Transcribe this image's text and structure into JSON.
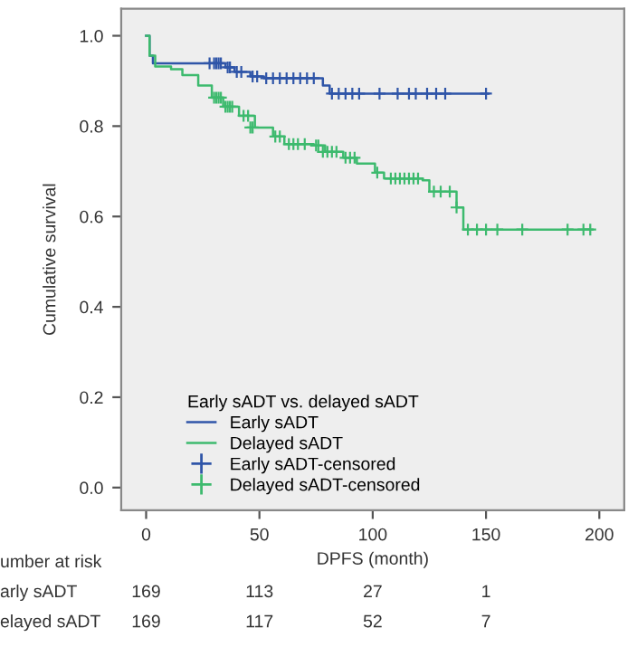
{
  "chart_data": {
    "type": "step",
    "xlabel": "DPFS (month)",
    "ylabel": "Cumulative survival",
    "legend_title": "Early sADT vs. delayed sADT",
    "xlim": [
      -11,
      211
    ],
    "ylim": [
      -0.05,
      1.06
    ],
    "xticks": [
      0,
      50,
      100,
      150,
      200
    ],
    "yticks": [
      {
        "value": 0,
        "label": "0.0"
      },
      0.2,
      0.4,
      0.6,
      0.8,
      {
        "value": 1,
        "label": "1.0"
      }
    ],
    "grid": false,
    "legend": "bottom left",
    "series": [
      {
        "name": "Early sADT",
        "color": "#2f55a8",
        "x": [
          0,
          1.5,
          3,
          35,
          39,
          46,
          52,
          78,
          81,
          151
        ],
        "values": [
          1.0,
          0.956,
          0.939,
          0.93,
          0.92,
          0.91,
          0.906,
          0.89,
          0.872,
          0.872
        ]
      },
      {
        "name": "Delayed sADT",
        "color": "#3dba6e",
        "x": [
          0,
          1.5,
          4,
          11,
          16,
          23,
          29,
          34,
          41,
          48,
          56,
          61,
          74,
          79,
          87,
          93,
          101,
          105,
          122,
          125,
          135,
          137,
          140,
          197
        ],
        "values": [
          1.0,
          0.956,
          0.932,
          0.926,
          0.913,
          0.89,
          0.863,
          0.843,
          0.823,
          0.797,
          0.777,
          0.76,
          0.757,
          0.743,
          0.73,
          0.717,
          0.697,
          0.684,
          0.68,
          0.655,
          0.655,
          0.62,
          0.571,
          0.571
        ]
      },
      {
        "name": "Early sADT-censored",
        "type": "scatter",
        "marker": "cross",
        "color": "#2f55a8",
        "x": [
          28,
          30,
          31,
          32,
          33,
          36,
          37,
          40,
          42,
          47,
          49,
          53,
          56,
          59,
          62,
          65,
          68,
          71,
          74,
          82,
          85,
          88,
          91,
          94,
          103,
          111,
          116,
          119,
          124,
          128,
          132,
          150
        ],
        "values": [
          0.939,
          0.939,
          0.939,
          0.939,
          0.939,
          0.93,
          0.93,
          0.92,
          0.92,
          0.91,
          0.91,
          0.906,
          0.906,
          0.906,
          0.906,
          0.906,
          0.906,
          0.906,
          0.906,
          0.872,
          0.872,
          0.872,
          0.872,
          0.872,
          0.872,
          0.872,
          0.872,
          0.872,
          0.872,
          0.872,
          0.872,
          0.872
        ]
      },
      {
        "name": "Delayed sADT-censored",
        "type": "scatter",
        "marker": "cross",
        "color": "#3dba6e",
        "x": [
          30,
          31,
          32,
          33,
          35,
          36,
          37,
          38,
          43,
          45,
          46,
          47,
          57,
          59,
          63,
          65,
          67,
          70,
          75,
          76,
          78,
          80,
          82,
          84,
          88,
          90,
          92,
          102,
          108,
          110,
          112,
          114,
          116,
          118,
          120,
          127,
          130,
          134,
          137,
          142,
          146,
          150,
          155,
          166,
          186,
          193,
          196
        ],
        "values": [
          0.863,
          0.863,
          0.863,
          0.863,
          0.843,
          0.843,
          0.843,
          0.843,
          0.823,
          0.823,
          0.797,
          0.797,
          0.777,
          0.777,
          0.76,
          0.76,
          0.76,
          0.76,
          0.757,
          0.757,
          0.743,
          0.743,
          0.743,
          0.743,
          0.73,
          0.73,
          0.73,
          0.697,
          0.684,
          0.684,
          0.684,
          0.684,
          0.684,
          0.684,
          0.684,
          0.655,
          0.655,
          0.655,
          0.62,
          0.571,
          0.571,
          0.571,
          0.571,
          0.571,
          0.571,
          0.571,
          0.571
        ]
      }
    ],
    "annotations": [
      "umber at risk",
      "arly sADT",
      "169",
      "113",
      "27",
      "1",
      "elayed sADT",
      "169",
      "117",
      "52",
      "7"
    ]
  }
}
